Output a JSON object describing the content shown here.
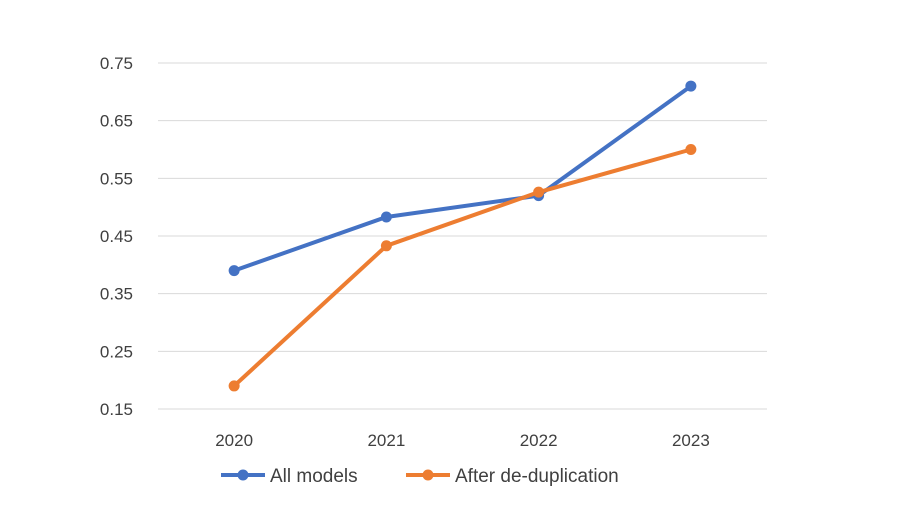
{
  "chart_data": {
    "type": "line",
    "title": "",
    "xlabel": "",
    "ylabel": "",
    "categories": [
      "2020",
      "2021",
      "2022",
      "2023"
    ],
    "ylim": [
      0.15,
      0.75
    ],
    "yticks": [
      "0.75",
      "0.65",
      "0.55",
      "0.45",
      "0.35",
      "0.25",
      "0.15"
    ],
    "grid": true,
    "legend_position": "bottom",
    "series": [
      {
        "name": "All models",
        "color": "#4472C4",
        "values": [
          0.39,
          0.483,
          0.52,
          0.71
        ]
      },
      {
        "name": "After de-duplication",
        "color": "#ED7D31",
        "values": [
          0.19,
          0.433,
          0.526,
          0.6
        ]
      }
    ]
  }
}
